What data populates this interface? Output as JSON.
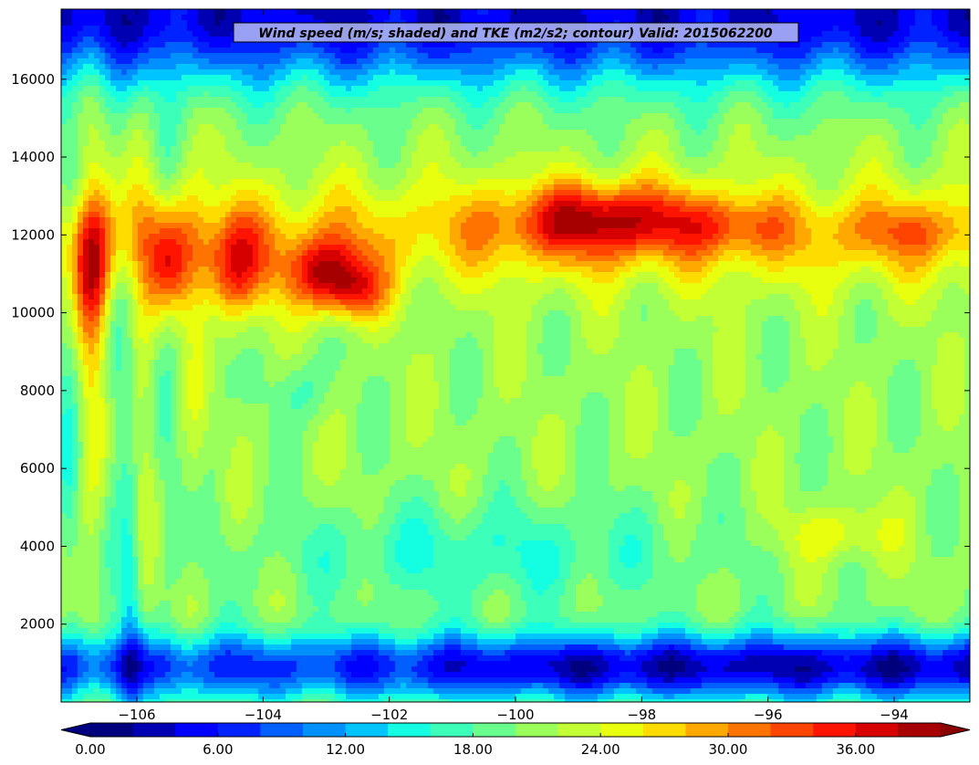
{
  "chart_data": {
    "type": "heatmap",
    "title": "Wind speed (m/s; shaded) and TKE (m2/s2; contour) Valid: 2015062200",
    "xlabel": "",
    "ylabel": "",
    "xlim": [
      -107.2,
      -92.8
    ],
    "ylim": [
      0,
      17800
    ],
    "x_ticks": [
      -106,
      -104,
      -102,
      -100,
      -98,
      -96,
      -94
    ],
    "x_tick_labels": [
      "−106",
      "−104",
      "−102",
      "−100",
      "−98",
      "−96",
      "−94"
    ],
    "y_ticks": [
      2000,
      4000,
      6000,
      8000,
      10000,
      12000,
      14000,
      16000
    ],
    "y_tick_labels": [
      "2000",
      "4000",
      "6000",
      "8000",
      "10000",
      "12000",
      "14000",
      "16000"
    ],
    "grid": false,
    "colorbar": {
      "orientation": "horizontal",
      "extend": "both",
      "min": 0,
      "max": 40,
      "step": 2,
      "ticks": [
        0,
        6,
        12,
        18,
        24,
        30,
        36
      ],
      "tick_labels": [
        "0.00",
        "6.00",
        "12.00",
        "18.00",
        "24.00",
        "30.00",
        "36.00"
      ],
      "colors": [
        "#00007f",
        "#0000b2",
        "#0000ff",
        "#0022ff",
        "#0060ff",
        "#0090ff",
        "#00c4ff",
        "#14ffe2",
        "#3cffba",
        "#6aff8c",
        "#9bff5b",
        "#c2ff34",
        "#e8ff0d",
        "#ffdc00",
        "#ffa800",
        "#ff7400",
        "#ff4400",
        "#ff1400",
        "#d60000",
        "#a60000"
      ],
      "under_color": "#000080",
      "over_color": "#8a0000"
    },
    "features": [
      {
        "name": "upper-level jet core west",
        "x": -102.9,
        "y": 11200,
        "value": 36
      },
      {
        "name": "upper-level jet core east",
        "x": -98.6,
        "y": 12450,
        "value": 35
      },
      {
        "name": "mid-level maximum",
        "x": -94.9,
        "y": 4300,
        "value": 27
      },
      {
        "name": "low-level minimum",
        "x": -98,
        "y": 1100,
        "value": 3
      },
      {
        "name": "upper-level minimum",
        "x": -99,
        "y": 17200,
        "value": 4
      }
    ]
  }
}
